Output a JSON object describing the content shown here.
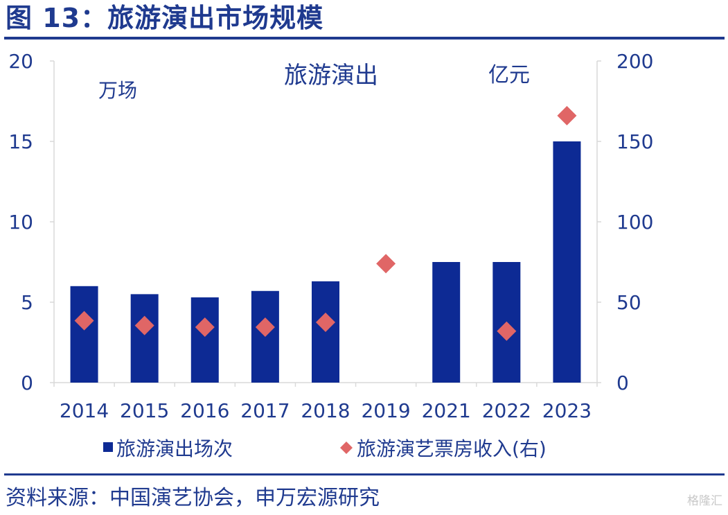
{
  "figure_title": "图 13：旅游演出市场规模",
  "source_text": "资料来源：中国演艺协会，申万宏源研究",
  "watermark_text": "格隆汇",
  "colors": {
    "title": "#1f3a8f",
    "bar": "#0d2a94",
    "marker": "#e06666",
    "axis_text": "#1f3a8f",
    "axis_line": "#d9d9d9"
  },
  "chart_data": {
    "type": "bar",
    "title": "旅游演出",
    "categories": [
      "2014",
      "2015",
      "2016",
      "2017",
      "2018",
      "2019",
      "2021",
      "2022",
      "2023"
    ],
    "series": [
      {
        "name": "旅游演出场次",
        "type": "bar",
        "axis": "left",
        "values": [
          6.0,
          5.5,
          5.3,
          5.7,
          6.3,
          null,
          7.5,
          7.5,
          15.0
        ]
      },
      {
        "name": "旅游演艺票房收入(右)",
        "type": "scatter",
        "marker": "diamond",
        "axis": "right",
        "values": [
          38.5,
          35.5,
          34.5,
          34.5,
          37.5,
          74.0,
          null,
          32.0,
          166.0
        ]
      }
    ],
    "left_axis": {
      "unit_label": "万场",
      "ylim": [
        0,
        20
      ],
      "ticks": [
        0,
        5,
        10,
        15,
        20
      ]
    },
    "right_axis": {
      "unit_label": "亿元",
      "ylim": [
        0,
        200
      ],
      "ticks": [
        0,
        50,
        100,
        150,
        200
      ]
    },
    "grid": false,
    "legend_position": "bottom"
  }
}
